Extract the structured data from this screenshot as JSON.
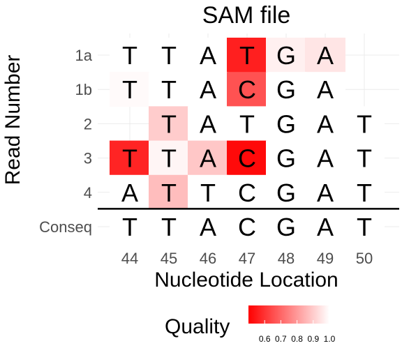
{
  "chart_data": {
    "type": "heatmap",
    "title": "SAM file",
    "xlabel": "Nucleotide Location",
    "ylabel": "Read Number",
    "x": [
      44,
      45,
      46,
      47,
      48,
      49,
      50
    ],
    "rows": [
      "1a",
      "1b",
      "2",
      "3",
      "4",
      "Conseq"
    ],
    "cells": [
      {
        "row": "1a",
        "x": 44,
        "base": "T",
        "quality": 1.0
      },
      {
        "row": "1a",
        "x": 45,
        "base": "T",
        "quality": 1.0
      },
      {
        "row": "1a",
        "x": 46,
        "base": "A",
        "quality": 1.0
      },
      {
        "row": "1a",
        "x": 47,
        "base": "T",
        "quality": 0.56
      },
      {
        "row": "1a",
        "x": 48,
        "base": "G",
        "quality": 0.97
      },
      {
        "row": "1a",
        "x": 49,
        "base": "A",
        "quality": 0.95
      },
      {
        "row": "1b",
        "x": 44,
        "base": "T",
        "quality": 0.99
      },
      {
        "row": "1b",
        "x": 45,
        "base": "T",
        "quality": 1.0
      },
      {
        "row": "1b",
        "x": 46,
        "base": "A",
        "quality": 1.0
      },
      {
        "row": "1b",
        "x": 47,
        "base": "C",
        "quality": 0.66
      },
      {
        "row": "1b",
        "x": 48,
        "base": "G",
        "quality": 1.0
      },
      {
        "row": "1b",
        "x": 49,
        "base": "A",
        "quality": 1.0
      },
      {
        "row": "2",
        "x": 45,
        "base": "T",
        "quality": 0.9
      },
      {
        "row": "2",
        "x": 46,
        "base": "A",
        "quality": 1.0
      },
      {
        "row": "2",
        "x": 47,
        "base": "T",
        "quality": 1.0
      },
      {
        "row": "2",
        "x": 48,
        "base": "G",
        "quality": 1.0
      },
      {
        "row": "2",
        "x": 49,
        "base": "A",
        "quality": 1.0
      },
      {
        "row": "2",
        "x": 50,
        "base": "T",
        "quality": 1.0
      },
      {
        "row": "3",
        "x": 44,
        "base": "T",
        "quality": 0.57
      },
      {
        "row": "3",
        "x": 45,
        "base": "T",
        "quality": 0.98
      },
      {
        "row": "3",
        "x": 46,
        "base": "A",
        "quality": 0.89
      },
      {
        "row": "3",
        "x": 47,
        "base": "C",
        "quality": 0.52
      },
      {
        "row": "3",
        "x": 48,
        "base": "G",
        "quality": 1.0
      },
      {
        "row": "3",
        "x": 49,
        "base": "A",
        "quality": 1.0
      },
      {
        "row": "3",
        "x": 50,
        "base": "T",
        "quality": 1.0
      },
      {
        "row": "4",
        "x": 44,
        "base": "A",
        "quality": 1.0
      },
      {
        "row": "4",
        "x": 45,
        "base": "T",
        "quality": 0.87
      },
      {
        "row": "4",
        "x": 46,
        "base": "T",
        "quality": 1.0
      },
      {
        "row": "4",
        "x": 47,
        "base": "C",
        "quality": 1.0
      },
      {
        "row": "4",
        "x": 48,
        "base": "G",
        "quality": 1.0
      },
      {
        "row": "4",
        "x": 49,
        "base": "A",
        "quality": 1.0
      },
      {
        "row": "4",
        "x": 50,
        "base": "T",
        "quality": 1.0
      },
      {
        "row": "Conseq",
        "x": 44,
        "base": "T",
        "quality": 1.0
      },
      {
        "row": "Conseq",
        "x": 45,
        "base": "T",
        "quality": 1.0
      },
      {
        "row": "Conseq",
        "x": 46,
        "base": "A",
        "quality": 1.0
      },
      {
        "row": "Conseq",
        "x": 47,
        "base": "C",
        "quality": 1.0
      },
      {
        "row": "Conseq",
        "x": 48,
        "base": "G",
        "quality": 1.0
      },
      {
        "row": "Conseq",
        "x": 49,
        "base": "A",
        "quality": 1.0
      },
      {
        "row": "Conseq",
        "x": 50,
        "base": "T",
        "quality": 1.0
      }
    ],
    "legend": {
      "title": "Quality",
      "position": "bottom",
      "ticks": [
        "0.6",
        "0.7",
        "0.8",
        "0.9",
        "1.0"
      ],
      "range": [
        0.5,
        1.0
      ],
      "low_color": "#ff0000",
      "high_color": "#ffffff"
    },
    "separator_between": [
      "4",
      "Conseq"
    ],
    "grid": true
  }
}
